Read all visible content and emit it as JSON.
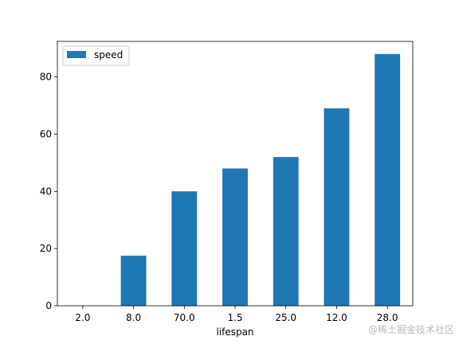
{
  "chart_data": {
    "type": "bar",
    "categories": [
      "2.0",
      "8.0",
      "70.0",
      "1.5",
      "25.0",
      "12.0",
      "28.0"
    ],
    "series": [
      {
        "name": "speed",
        "values": [
          0,
          17.5,
          40,
          48,
          52,
          69,
          88
        ],
        "color": "#1f77b4"
      }
    ],
    "xlabel": "lifespan",
    "ylabel": "",
    "ylim": [
      0,
      92.4
    ],
    "yticks": [
      0,
      20,
      40,
      60,
      80
    ],
    "grid": false,
    "legend_position": "top-left"
  },
  "watermark": "@稀土掘金技术社区"
}
